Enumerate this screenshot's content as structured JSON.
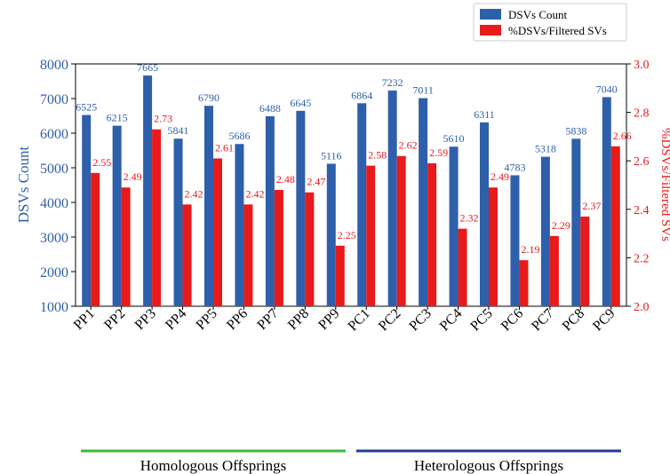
{
  "chart_data": {
    "type": "bar",
    "categories": [
      "PP1",
      "PP2",
      "PP3",
      "PP4",
      "PP5",
      "PP6",
      "PP7",
      "PP8",
      "PP9",
      "PC1",
      "PC2",
      "PC3",
      "PC4",
      "PC5",
      "PC6",
      "PC7",
      "PC8",
      "PC9"
    ],
    "series": [
      {
        "name": "DSVs Count",
        "axis": "left",
        "color": "#2e5fab",
        "values": [
          6525,
          6215,
          7665,
          5841,
          6790,
          5686,
          6488,
          6645,
          5116,
          6864,
          7232,
          7011,
          5610,
          6311,
          4783,
          5318,
          5838,
          7040
        ],
        "labels": [
          "6525",
          "6215",
          "7665",
          "5841",
          "6790",
          "5686",
          "6488",
          "6645",
          "5116",
          "6864",
          "7232",
          "7011",
          "5610",
          "6311",
          "4783",
          "5318",
          "5838",
          "7040"
        ]
      },
      {
        "name": "%DSVs/Filtered SVs",
        "axis": "right",
        "color": "#e81a1a",
        "values": [
          2.55,
          2.49,
          2.73,
          2.42,
          2.61,
          2.42,
          2.48,
          2.47,
          2.25,
          2.58,
          2.62,
          2.59,
          2.32,
          2.49,
          2.19,
          2.29,
          2.37,
          2.66
        ],
        "labels": [
          "2.55",
          "2.49",
          "2.73",
          "2.42",
          "2.61",
          "2.42",
          "2.48",
          "2.47",
          "2.25",
          "2.58",
          "2.62",
          "2.59",
          "2.32",
          "2.49",
          "2.19",
          "2.29",
          "2.37",
          "2.66"
        ]
      }
    ],
    "ylabel": "DSVs Count",
    "y2label": "%DSVs/Filtered SVs",
    "ylim": [
      1000,
      8000
    ],
    "y2lim": [
      2.0,
      3.0
    ],
    "yticks": [
      1000,
      2000,
      3000,
      4000,
      5000,
      6000,
      7000,
      8000
    ],
    "ytick_labels": [
      "1000",
      "2000",
      "3000",
      "4000",
      "5000",
      "6000",
      "7000",
      "8000"
    ],
    "y2ticks": [
      2.0,
      2.2,
      2.4,
      2.6,
      2.8,
      3.0
    ],
    "y2tick_labels": [
      "2.0",
      "2.2",
      "2.4",
      "2.6",
      "2.8",
      "3.0"
    ],
    "legend_position": "top-right",
    "groups": [
      {
        "label": "Homologous Offsprings",
        "color": "#3cb83c",
        "from": 0,
        "to": 8
      },
      {
        "label": "Heterologous Offsprings",
        "color": "#1f3f91",
        "from": 9,
        "to": 17
      }
    ],
    "left_axis_color": "#2e5fab",
    "right_axis_color": "#e81a1a"
  }
}
